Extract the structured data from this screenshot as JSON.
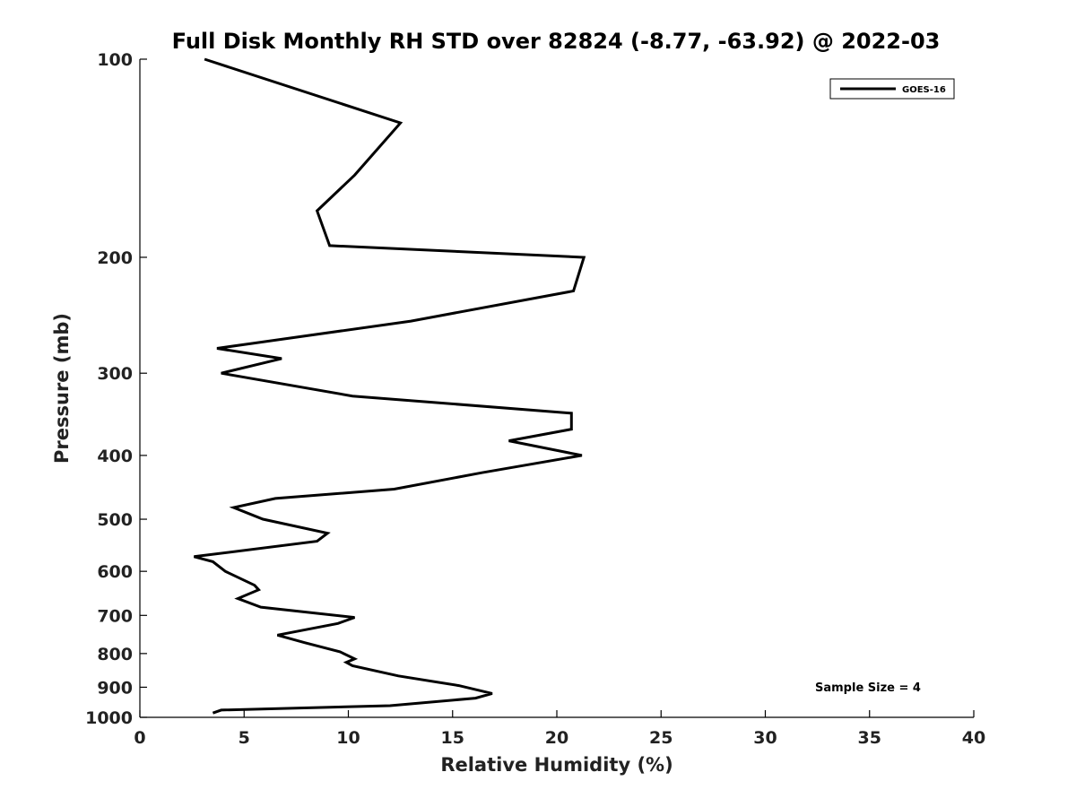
{
  "chart_data": {
    "type": "line",
    "title": "Full Disk Monthly RH STD over 82824 (-8.77, -63.92) @ 2022-03",
    "xlabel": "Relative Humidity (%)",
    "ylabel": "Pressure (mb)",
    "xlim": [
      0,
      40
    ],
    "ylim": [
      100,
      1000
    ],
    "y_scale": "log",
    "y_reversed": true,
    "x_ticks": [
      0,
      5,
      10,
      15,
      20,
      25,
      30,
      35,
      40
    ],
    "y_ticks": [
      100,
      200,
      300,
      400,
      500,
      600,
      700,
      800,
      900,
      1000
    ],
    "grid": false,
    "legend": {
      "placement": "top-right",
      "entries": [
        "GOES-16"
      ]
    },
    "annotation": "Sample Size = 4",
    "series": [
      {
        "name": "GOES-16",
        "color": "#000000",
        "points": [
          [
            3.1,
            100
          ],
          [
            12.5,
            125
          ],
          [
            10.3,
            150
          ],
          [
            8.5,
            170
          ],
          [
            9.1,
            192
          ],
          [
            21.3,
            200
          ],
          [
            20.8,
            225
          ],
          [
            13.0,
            250
          ],
          [
            3.7,
            275
          ],
          [
            6.8,
            285
          ],
          [
            3.9,
            300
          ],
          [
            10.2,
            325
          ],
          [
            20.7,
            345
          ],
          [
            20.7,
            365
          ],
          [
            17.7,
            380
          ],
          [
            21.2,
            400
          ],
          [
            16.4,
            425
          ],
          [
            12.2,
            450
          ],
          [
            6.5,
            465
          ],
          [
            4.5,
            480
          ],
          [
            5.9,
            500
          ],
          [
            9.0,
            525
          ],
          [
            8.5,
            540
          ],
          [
            2.6,
            570
          ],
          [
            3.5,
            580
          ],
          [
            4.1,
            600
          ],
          [
            5.5,
            630
          ],
          [
            5.7,
            640
          ],
          [
            4.7,
            660
          ],
          [
            5.8,
            680
          ],
          [
            10.3,
            705
          ],
          [
            9.5,
            720
          ],
          [
            6.6,
            750
          ],
          [
            7.9,
            770
          ],
          [
            9.6,
            795
          ],
          [
            10.3,
            815
          ],
          [
            9.9,
            825
          ],
          [
            10.2,
            835
          ],
          [
            12.4,
            865
          ],
          [
            15.3,
            895
          ],
          [
            16.9,
            920
          ],
          [
            16.1,
            935
          ],
          [
            12.0,
            960
          ],
          [
            3.9,
            975
          ],
          [
            3.5,
            985
          ]
        ]
      }
    ]
  }
}
